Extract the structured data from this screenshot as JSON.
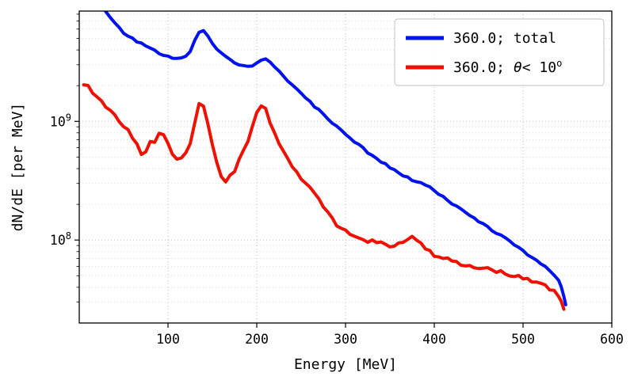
{
  "chart_data": {
    "type": "line",
    "title": "",
    "xlabel": "Energy [MeV]",
    "ylabel": "dN/dE [per MeV]",
    "xlim": [
      0,
      600
    ],
    "yscale": "log",
    "ylim": [
      20000000.0,
      8500000000.0
    ],
    "grid": true,
    "xticks": [
      100,
      200,
      300,
      400,
      500,
      600
    ],
    "yticks": [
      {
        "value": 100000000.0,
        "parts": [
          {
            "text": "10"
          },
          {
            "text": "8",
            "sup": true
          }
        ]
      },
      {
        "value": 1000000000.0,
        "parts": [
          {
            "text": "10"
          },
          {
            "text": "9",
            "sup": true
          }
        ]
      }
    ],
    "colors": {
      "grid_major": "#bdbdbd",
      "grid_minor": "#d6d6d6",
      "axis": "#000000",
      "blue": "#0013ee",
      "red": "#ee1000"
    },
    "legend": {
      "position": "upper right",
      "entries": [
        {
          "color": "#0013ee",
          "parts": [
            {
              "text": "360.0; total"
            }
          ]
        },
        {
          "color": "#ee1000",
          "parts": [
            {
              "text": "360.0; "
            },
            {
              "text": "θ",
              "italic": true
            },
            {
              "text": "< 10"
            },
            {
              "text": "o",
              "sup": true
            }
          ]
        }
      ]
    },
    "series": [
      {
        "name": "total",
        "color": "#0013ee",
        "line_width": 4,
        "jitter": 0.018,
        "x": [
          25,
          30,
          35,
          40,
          45,
          50,
          55,
          60,
          65,
          70,
          75,
          80,
          85,
          90,
          95,
          100,
          105,
          110,
          115,
          120,
          125,
          130,
          135,
          140,
          145,
          150,
          155,
          160,
          165,
          170,
          175,
          180,
          185,
          190,
          195,
          200,
          205,
          210,
          215,
          220,
          225,
          230,
          235,
          240,
          245,
          250,
          255,
          260,
          265,
          270,
          275,
          280,
          285,
          290,
          295,
          300,
          305,
          310,
          315,
          320,
          325,
          330,
          335,
          340,
          345,
          350,
          355,
          360,
          365,
          370,
          375,
          380,
          385,
          390,
          395,
          400,
          405,
          410,
          415,
          420,
          425,
          430,
          435,
          440,
          445,
          450,
          455,
          460,
          465,
          470,
          475,
          480,
          485,
          490,
          495,
          500,
          505,
          510,
          515,
          520,
          525,
          530,
          535,
          540,
          543,
          546,
          548
        ],
        "y": [
          9600000000.0,
          8400000000.0,
          7400000000.0,
          6700000000.0,
          6100000000.0,
          5600000000.0,
          5200000000.0,
          4950000000.0,
          4700000000.0,
          4500000000.0,
          4300000000.0,
          4100000000.0,
          3950000000.0,
          3750000000.0,
          3600000000.0,
          3500000000.0,
          3400000000.0,
          3350000000.0,
          3400000000.0,
          3550000000.0,
          3900000000.0,
          4800000000.0,
          5700000000.0,
          5850000000.0,
          5300000000.0,
          4600000000.0,
          4100000000.0,
          3750000000.0,
          3500000000.0,
          3300000000.0,
          3150000000.0,
          3000000000.0,
          2920000000.0,
          2900000000.0,
          2950000000.0,
          3100000000.0,
          3280000000.0,
          3350000000.0,
          3150000000.0,
          2900000000.0,
          2650000000.0,
          2400000000.0,
          2200000000.0,
          2000000000.0,
          1850000000.0,
          1700000000.0,
          1580000000.0,
          1450000000.0,
          1340000000.0,
          1240000000.0,
          1150000000.0,
          1060000000.0,
          980000000.0,
          910000000.0,
          840000000.0,
          780000000.0,
          720000000.0,
          670000000.0,
          630000000.0,
          590000000.0,
          550000000.0,
          520000000.0,
          490000000.0,
          460000000.0,
          435000000.0,
          410000000.0,
          390000000.0,
          370000000.0,
          350000000.0,
          335000000.0,
          320000000.0,
          310000000.0,
          300000000.0,
          290000000.0,
          278000000.0,
          262000000.0,
          246000000.0,
          230000000.0,
          216000000.0,
          203000000.0,
          191000000.0,
          180000000.0,
          170000000.0,
          161000000.0,
          152000000.0,
          144000000.0,
          136000000.0,
          129000000.0,
          122000000.0,
          115000000.0,
          109000000.0,
          103000000.0,
          97000000.0,
          91000000.0,
          86000000.0,
          81000000.0,
          76000000.0,
          71000000.0,
          67000000.0,
          63000000.0,
          59000000.0,
          55000000.0,
          51000000.0,
          46000000.0,
          41000000.0,
          34000000.0,
          29000000.0
        ]
      },
      {
        "name": "theta_lt_10deg",
        "color": "#ee1000",
        "line_width": 4,
        "jitter": 0.04,
        "x": [
          5,
          10,
          15,
          20,
          25,
          30,
          35,
          40,
          45,
          50,
          55,
          60,
          65,
          70,
          75,
          80,
          85,
          90,
          95,
          100,
          105,
          110,
          115,
          120,
          125,
          130,
          135,
          140,
          145,
          150,
          155,
          160,
          165,
          170,
          175,
          180,
          185,
          190,
          195,
          200,
          205,
          210,
          215,
          220,
          225,
          230,
          235,
          240,
          245,
          250,
          255,
          260,
          265,
          270,
          275,
          280,
          285,
          290,
          295,
          300,
          305,
          310,
          315,
          320,
          325,
          330,
          335,
          340,
          345,
          350,
          355,
          360,
          365,
          370,
          375,
          380,
          385,
          390,
          395,
          400,
          405,
          410,
          415,
          420,
          425,
          430,
          435,
          440,
          445,
          450,
          455,
          460,
          465,
          470,
          475,
          480,
          485,
          490,
          495,
          500,
          505,
          510,
          515,
          520,
          525,
          530,
          535,
          540,
          543,
          546
        ],
        "y": [
          2050000000.0,
          1950000000.0,
          1780000000.0,
          1600000000.0,
          1450000000.0,
          1320000000.0,
          1200000000.0,
          1100000000.0,
          1000000000.0,
          920000000.0,
          840000000.0,
          740000000.0,
          630000000.0,
          540000000.0,
          550000000.0,
          660000000.0,
          660000000.0,
          770000000.0,
          780000000.0,
          650000000.0,
          540000000.0,
          480000000.0,
          475000000.0,
          530000000.0,
          660000000.0,
          950000000.0,
          1380000000.0,
          1300000000.0,
          980000000.0,
          640000000.0,
          440000000.0,
          350000000.0,
          315000000.0,
          340000000.0,
          390000000.0,
          460000000.0,
          560000000.0,
          700000000.0,
          900000000.0,
          1150000000.0,
          1380000000.0,
          1280000000.0,
          1000000000.0,
          790000000.0,
          650000000.0,
          550000000.0,
          480000000.0,
          420000000.0,
          370000000.0,
          330000000.0,
          300000000.0,
          270000000.0,
          245000000.0,
          220000000.0,
          195000000.0,
          170000000.0,
          150000000.0,
          136000000.0,
          126000000.0,
          118000000.0,
          112000000.0,
          108000000.0,
          104000000.0,
          101000000.0,
          99000000.0,
          97000000.0,
          95000000.0,
          93000000.0,
          91000000.0,
          90000000.0,
          90000000.0,
          92000000.0,
          96000000.0,
          102000000.0,
          106000000.0,
          103000000.0,
          94000000.0,
          86000000.0,
          80000000.0,
          75000000.0,
          72000000.0,
          70000000.0,
          68000000.0,
          66000000.0,
          65000000.0,
          63000000.0,
          62000000.0,
          61000000.0,
          60000000.0,
          59000000.0,
          58000000.0,
          57000000.0,
          56000000.0,
          55000000.0,
          54000000.0,
          52500000.0,
          51500000.0,
          50000000.0,
          49000000.0,
          47500000.0,
          46000000.0,
          45000000.0,
          43500000.0,
          42000000.0,
          40500000.0,
          39000000.0,
          37000000.0,
          34500000.0,
          31000000.0,
          27000000.0
        ]
      }
    ]
  }
}
